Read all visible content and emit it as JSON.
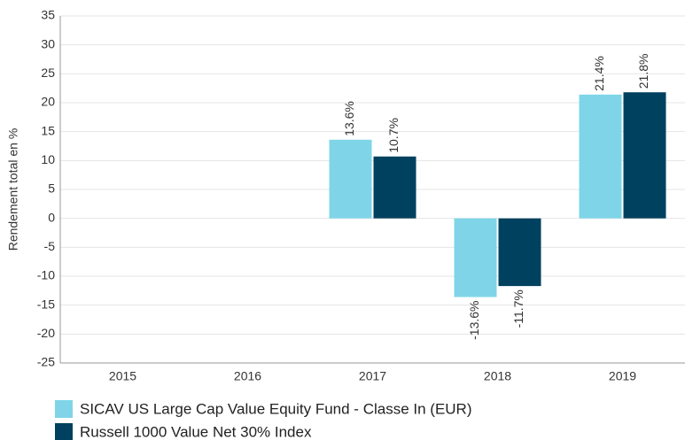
{
  "chart_data": {
    "type": "bar",
    "y_label": "Rendement total en %",
    "categories": [
      "2015",
      "2016",
      "2017",
      "2018",
      "2019"
    ],
    "series": [
      {
        "name": "SICAV US Large Cap Value Equity Fund - Classe In (EUR)",
        "color": "#7fd5e7",
        "values": [
          null,
          null,
          13.6,
          -13.6,
          21.4
        ],
        "value_labels": [
          null,
          null,
          "13.6%",
          "-13.6%",
          "21.4%"
        ]
      },
      {
        "name": "Russell 1000 Value Net 30% Index",
        "color": "#00415f",
        "values": [
          null,
          null,
          10.7,
          -11.7,
          21.8
        ],
        "value_labels": [
          null,
          null,
          "10.7%",
          "-11.7%",
          "21.8%"
        ]
      }
    ],
    "ylim": [
      -25,
      35
    ],
    "yticks": [
      -25,
      -20,
      -15,
      -10,
      -5,
      0,
      5,
      10,
      15,
      20,
      25,
      30,
      35
    ],
    "grid": true,
    "legend": "bottom"
  }
}
